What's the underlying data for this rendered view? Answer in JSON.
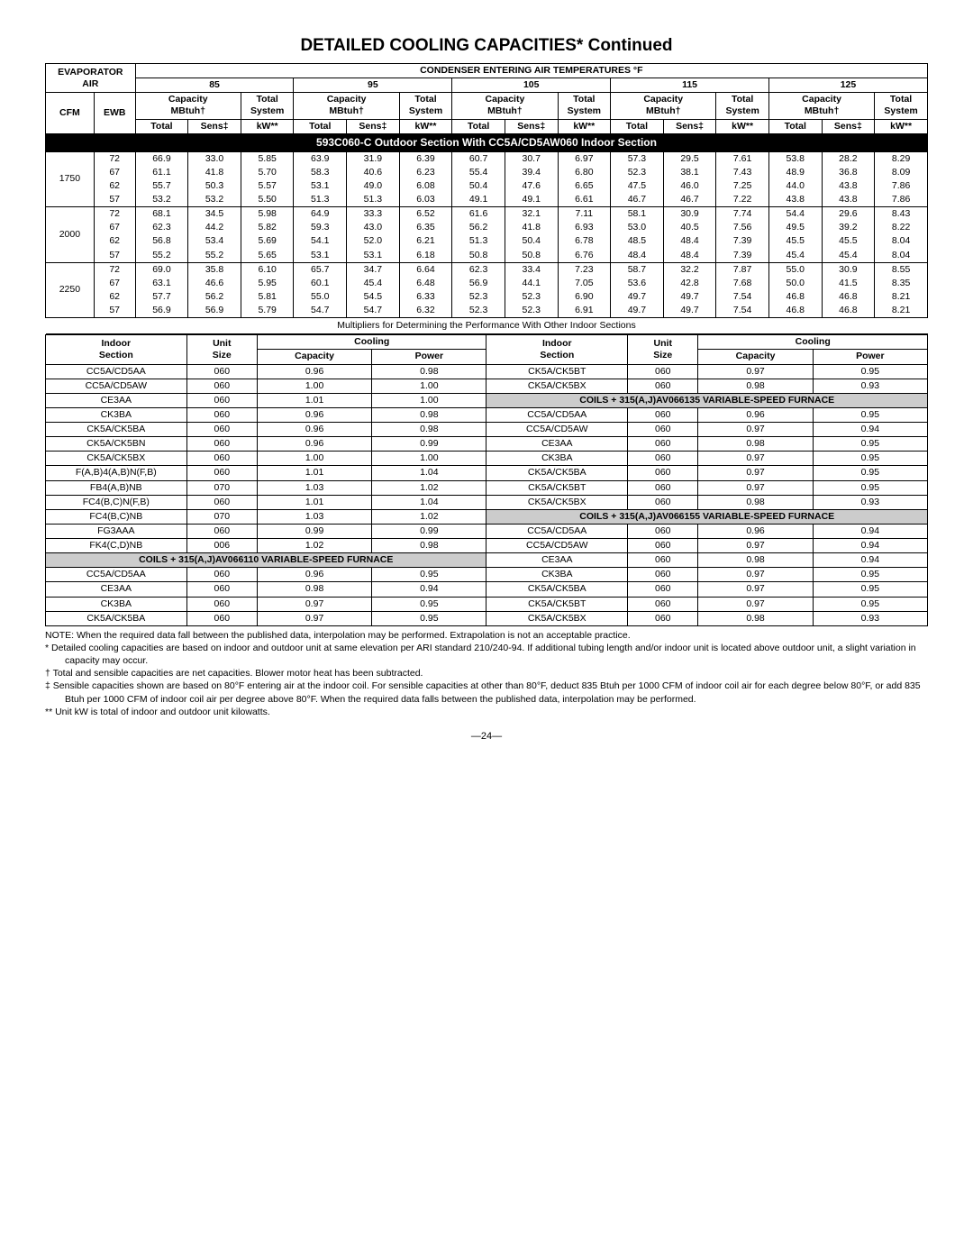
{
  "title": "DETAILED COOLING CAPACITIES* Continued",
  "h": {
    "evap": "EVAPORATOR",
    "air": "AIR",
    "cond": "CONDENSER ENTERING AIR TEMPERATURES °F",
    "temps": [
      "85",
      "95",
      "105",
      "115",
      "125"
    ],
    "cap": "Capacity",
    "mbtuh": "MBtuh†",
    "ts": "Total",
    "sys": "System",
    "cfm": "CFM",
    "ewb": "EWB",
    "tot": "Total",
    "sens": "Sens‡",
    "kw": "kW**"
  },
  "section": "593C060-C Outdoor Section With CC5A/CD5AW060 Indoor Section",
  "rows": [
    {
      "cfm": "1750",
      "d": [
        [
          "72",
          "66.9",
          "33.0",
          "5.85",
          "63.9",
          "31.9",
          "6.39",
          "60.7",
          "30.7",
          "6.97",
          "57.3",
          "29.5",
          "7.61",
          "53.8",
          "28.2",
          "8.29"
        ],
        [
          "67",
          "61.1",
          "41.8",
          "5.70",
          "58.3",
          "40.6",
          "6.23",
          "55.4",
          "39.4",
          "6.80",
          "52.3",
          "38.1",
          "7.43",
          "48.9",
          "36.8",
          "8.09"
        ],
        [
          "62",
          "55.7",
          "50.3",
          "5.57",
          "53.1",
          "49.0",
          "6.08",
          "50.4",
          "47.6",
          "6.65",
          "47.5",
          "46.0",
          "7.25",
          "44.0",
          "43.8",
          "7.86"
        ],
        [
          "57",
          "53.2",
          "53.2",
          "5.50",
          "51.3",
          "51.3",
          "6.03",
          "49.1",
          "49.1",
          "6.61",
          "46.7",
          "46.7",
          "7.22",
          "43.8",
          "43.8",
          "7.86"
        ]
      ]
    },
    {
      "cfm": "2000",
      "d": [
        [
          "72",
          "68.1",
          "34.5",
          "5.98",
          "64.9",
          "33.3",
          "6.52",
          "61.6",
          "32.1",
          "7.11",
          "58.1",
          "30.9",
          "7.74",
          "54.4",
          "29.6",
          "8.43"
        ],
        [
          "67",
          "62.3",
          "44.2",
          "5.82",
          "59.3",
          "43.0",
          "6.35",
          "56.2",
          "41.8",
          "6.93",
          "53.0",
          "40.5",
          "7.56",
          "49.5",
          "39.2",
          "8.22"
        ],
        [
          "62",
          "56.8",
          "53.4",
          "5.69",
          "54.1",
          "52.0",
          "6.21",
          "51.3",
          "50.4",
          "6.78",
          "48.5",
          "48.4",
          "7.39",
          "45.5",
          "45.5",
          "8.04"
        ],
        [
          "57",
          "55.2",
          "55.2",
          "5.65",
          "53.1",
          "53.1",
          "6.18",
          "50.8",
          "50.8",
          "6.76",
          "48.4",
          "48.4",
          "7.39",
          "45.4",
          "45.4",
          "8.04"
        ]
      ]
    },
    {
      "cfm": "2250",
      "d": [
        [
          "72",
          "69.0",
          "35.8",
          "6.10",
          "65.7",
          "34.7",
          "6.64",
          "62.3",
          "33.4",
          "7.23",
          "58.7",
          "32.2",
          "7.87",
          "55.0",
          "30.9",
          "8.55"
        ],
        [
          "67",
          "63.1",
          "46.6",
          "5.95",
          "60.1",
          "45.4",
          "6.48",
          "56.9",
          "44.1",
          "7.05",
          "53.6",
          "42.8",
          "7.68",
          "50.0",
          "41.5",
          "8.35"
        ],
        [
          "62",
          "57.7",
          "56.2",
          "5.81",
          "55.0",
          "54.5",
          "6.33",
          "52.3",
          "52.3",
          "6.90",
          "49.7",
          "49.7",
          "7.54",
          "46.8",
          "46.8",
          "8.21"
        ],
        [
          "57",
          "56.9",
          "56.9",
          "5.79",
          "54.7",
          "54.7",
          "6.32",
          "52.3",
          "52.3",
          "6.91",
          "49.7",
          "49.7",
          "7.54",
          "46.8",
          "46.8",
          "8.21"
        ]
      ]
    }
  ],
  "mult_note": "Multipliers for Determining the Performance With Other Indoor Sections",
  "mh": {
    "is": "Indoor",
    "sec": "Section",
    "us": "Unit",
    "sz": "Size",
    "cool": "Cooling",
    "cap": "Capacity",
    "pow": "Power"
  },
  "left": [
    [
      "CC5A/CD5AA",
      "060",
      "0.96",
      "0.98"
    ],
    [
      "CC5A/CD5AW",
      "060",
      "1.00",
      "1.00"
    ],
    [
      "CE3AA",
      "060",
      "1.01",
      "1.00"
    ],
    [
      "CK3BA",
      "060",
      "0.96",
      "0.98"
    ],
    [
      "CK5A/CK5BA",
      "060",
      "0.96",
      "0.98"
    ],
    [
      "CK5A/CK5BN",
      "060",
      "0.96",
      "0.99"
    ],
    [
      "CK5A/CK5BX",
      "060",
      "1.00",
      "1.00"
    ],
    [
      "F(A,B)4(A,B)N(F,B)",
      "060",
      "1.01",
      "1.04"
    ],
    [
      "FB4(A,B)NB",
      "070",
      "1.03",
      "1.02"
    ],
    [
      "FC4(B,C)N(F,B)",
      "060",
      "1.01",
      "1.04"
    ],
    [
      "FC4(B,C)NB",
      "070",
      "1.03",
      "1.02"
    ],
    [
      "FG3AAA",
      "060",
      "0.99",
      "0.99"
    ],
    [
      "FK4(C,D)NB",
      "006",
      "1.02",
      "0.98"
    ]
  ],
  "lhdr": "COILS + 315(A,J)AV066110 VARIABLE-SPEED FURNACE",
  "left2": [
    [
      "CC5A/CD5AA",
      "060",
      "0.96",
      "0.95"
    ],
    [
      "CE3AA",
      "060",
      "0.98",
      "0.94"
    ],
    [
      "CK3BA",
      "060",
      "0.97",
      "0.95"
    ],
    [
      "CK5A/CK5BA",
      "060",
      "0.97",
      "0.95"
    ]
  ],
  "right": [
    [
      "CK5A/CK5BT",
      "060",
      "0.97",
      "0.95"
    ],
    [
      "CK5A/CK5BX",
      "060",
      "0.98",
      "0.93"
    ]
  ],
  "rhdr1": "COILS + 315(A,J)AV066135 VARIABLE-SPEED FURNACE",
  "right1": [
    [
      "CC5A/CD5AA",
      "060",
      "0.96",
      "0.95"
    ],
    [
      "CC5A/CD5AW",
      "060",
      "0.97",
      "0.94"
    ],
    [
      "CE3AA",
      "060",
      "0.98",
      "0.95"
    ],
    [
      "CK3BA",
      "060",
      "0.97",
      "0.95"
    ],
    [
      "CK5A/CK5BA",
      "060",
      "0.97",
      "0.95"
    ],
    [
      "CK5A/CK5BT",
      "060",
      "0.97",
      "0.95"
    ],
    [
      "CK5A/CK5BX",
      "060",
      "0.98",
      "0.93"
    ]
  ],
  "rhdr2": "COILS + 315(A,J)AV066155 VARIABLE-SPEED FURNACE",
  "right2": [
    [
      "CC5A/CD5AA",
      "060",
      "0.96",
      "0.94"
    ],
    [
      "CC5A/CD5AW",
      "060",
      "0.97",
      "0.94"
    ],
    [
      "CE3AA",
      "060",
      "0.98",
      "0.94"
    ],
    [
      "CK3BA",
      "060",
      "0.97",
      "0.95"
    ],
    [
      "CK5A/CK5BA",
      "060",
      "0.97",
      "0.95"
    ],
    [
      "CK5A/CK5BT",
      "060",
      "0.97",
      "0.95"
    ],
    [
      "CK5A/CK5BX",
      "060",
      "0.98",
      "0.93"
    ]
  ],
  "notes": [
    "NOTE: When the required data fall between the published data, interpolation may be performed. Extrapolation is not an acceptable practice.",
    "* Detailed cooling capacities are based on indoor and outdoor unit at same elevation per ARI standard 210/240-94. If additional tubing length and/or indoor unit is located above outdoor unit, a slight variation in capacity may occur.",
    "† Total and sensible capacities are net capacities. Blower motor heat has been subtracted.",
    "‡ Sensible capacities shown are based on 80°F entering air at the indoor coil. For sensible capacities at other than 80°F, deduct 835 Btuh per 1000 CFM of indoor coil air for each degree below 80°F, or add 835 Btuh per 1000 CFM of indoor coil air per degree above 80°F. When the required data falls between the published data, interpolation may be performed.",
    "** Unit kW is total of indoor and outdoor unit kilowatts."
  ],
  "page": "—24—"
}
